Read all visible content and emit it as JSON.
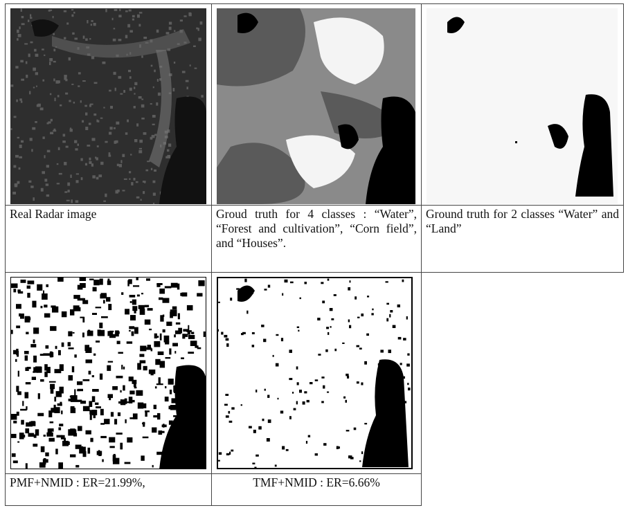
{
  "table": {
    "rows": [
      [
        "Real Radar image",
        "Groud truth for 4 classes : “Water”, “Forest and cultivation”, “Corn field”, and “Houses”.",
        "Ground truth for 2 classes “Water” and “Land”"
      ],
      [
        "PMF+NMID : ER=21.99%,",
        "TMF+NMID : ER=6.66%"
      ]
    ]
  }
}
